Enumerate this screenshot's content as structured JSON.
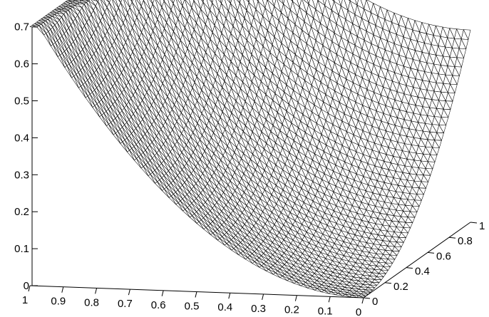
{
  "chart_data": {
    "type": "surface",
    "title": "",
    "xlabel": "",
    "ylabel": "",
    "zlabel": "",
    "surface_color": "#ffffff",
    "mesh_color": "#000000",
    "x_ticks": [
      "1",
      "0.9",
      "0.8",
      "0.7",
      "0.6",
      "0.5",
      "0.4",
      "0.3",
      "0.2",
      "0.1",
      "0"
    ],
    "y_ticks": [
      "0",
      "0.2",
      "0.4",
      "0.6",
      "0.8",
      "1"
    ],
    "z_ticks": [
      "0",
      "0.1",
      "0.2",
      "0.3",
      "0.4",
      "0.5",
      "0.6",
      "0.7"
    ],
    "xlim": [
      0,
      1
    ],
    "ylim": [
      0,
      1
    ],
    "zlim": [
      0,
      0.7
    ],
    "plateau_height": 0.7,
    "grid_resolution": 48
  }
}
